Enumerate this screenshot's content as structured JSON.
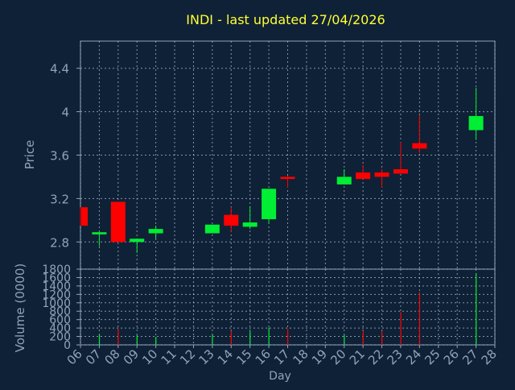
{
  "title": "INDI - last updated 27/04/2026",
  "colors": {
    "background": "#0f2136",
    "frame": "#8fa3bd",
    "grid": "#b8c4d4",
    "axis_text": "#8fa3bd",
    "title": "#ffff33",
    "up": "#00ee33",
    "down": "#ff0000"
  },
  "chart_data": [
    {
      "type": "candlestick",
      "ylabel": "Price",
      "ylim": [
        2.55,
        4.65
      ],
      "yticks": [
        2.8,
        3.2,
        3.6,
        4,
        4.4
      ],
      "ytick_labels": [
        "2.8",
        "3.2",
        "3.6",
        "4",
        "4.4"
      ],
      "grid": true,
      "candles": [
        {
          "day": 6,
          "open": 3.12,
          "close": 2.95,
          "high": 3.12,
          "low": 2.95
        },
        {
          "day": 7,
          "open": 2.87,
          "close": 2.89,
          "high": 2.89,
          "low": 2.76
        },
        {
          "day": 8,
          "open": 3.17,
          "close": 2.8,
          "high": 3.17,
          "low": 2.8
        },
        {
          "day": 9,
          "open": 2.8,
          "close": 2.83,
          "high": 2.83,
          "low": 2.7
        },
        {
          "day": 10,
          "open": 2.88,
          "close": 2.92,
          "high": 2.95,
          "low": 2.83
        },
        {
          "day": 13,
          "open": 2.88,
          "close": 2.96,
          "high": 2.96,
          "low": 2.88
        },
        {
          "day": 14,
          "open": 3.05,
          "close": 2.95,
          "high": 3.12,
          "low": 2.89
        },
        {
          "day": 15,
          "open": 2.94,
          "close": 2.98,
          "high": 3.13,
          "low": 2.92
        },
        {
          "day": 16,
          "open": 3.01,
          "close": 3.29,
          "high": 3.29,
          "low": 2.97
        },
        {
          "day": 17,
          "open": 3.4,
          "close": 3.38,
          "high": 3.41,
          "low": 3.3
        },
        {
          "day": 20,
          "open": 3.33,
          "close": 3.4,
          "high": 3.47,
          "low": 3.33
        },
        {
          "day": 21,
          "open": 3.44,
          "close": 3.38,
          "high": 3.51,
          "low": 3.38
        },
        {
          "day": 22,
          "open": 3.44,
          "close": 3.4,
          "high": 3.47,
          "low": 3.3
        },
        {
          "day": 23,
          "open": 3.47,
          "close": 3.43,
          "high": 3.72,
          "low": 3.43
        },
        {
          "day": 24,
          "open": 3.71,
          "close": 3.66,
          "high": 3.97,
          "low": 3.62
        },
        {
          "day": 27,
          "open": 3.83,
          "close": 3.96,
          "high": 4.22,
          "low": 3.74
        }
      ]
    },
    {
      "type": "bar",
      "ylabel": "Volume (0000)",
      "xlabel": "Day",
      "ylim": [
        0,
        1800
      ],
      "yticks": [
        0,
        200,
        400,
        600,
        800,
        1000,
        1200,
        1400,
        1600,
        1800
      ],
      "ytick_labels": [
        "0",
        "200",
        "400",
        "600",
        "800",
        "1000",
        "1200",
        "1400",
        "1600",
        "1800"
      ],
      "grid": true,
      "volumes": [
        {
          "day": 6,
          "value": 10,
          "direction": "down"
        },
        {
          "day": 7,
          "value": 250,
          "direction": "up"
        },
        {
          "day": 8,
          "value": 380,
          "direction": "down"
        },
        {
          "day": 9,
          "value": 230,
          "direction": "up"
        },
        {
          "day": 10,
          "value": 190,
          "direction": "up"
        },
        {
          "day": 13,
          "value": 250,
          "direction": "up"
        },
        {
          "day": 14,
          "value": 330,
          "direction": "down"
        },
        {
          "day": 15,
          "value": 330,
          "direction": "up"
        },
        {
          "day": 16,
          "value": 410,
          "direction": "up"
        },
        {
          "day": 17,
          "value": 380,
          "direction": "down"
        },
        {
          "day": 20,
          "value": 230,
          "direction": "up"
        },
        {
          "day": 21,
          "value": 330,
          "direction": "down"
        },
        {
          "day": 22,
          "value": 330,
          "direction": "down"
        },
        {
          "day": 23,
          "value": 780,
          "direction": "down"
        },
        {
          "day": 24,
          "value": 1250,
          "direction": "down"
        },
        {
          "day": 27,
          "value": 1700,
          "direction": "up"
        }
      ]
    }
  ],
  "x_axis": {
    "min": 6,
    "max": 28,
    "tick_labels": [
      "06",
      "07",
      "08",
      "09",
      "10",
      "11",
      "12",
      "13",
      "14",
      "15",
      "16",
      "17",
      "18",
      "19",
      "20",
      "21",
      "22",
      "23",
      "24",
      "25",
      "26",
      "27",
      "28"
    ]
  }
}
